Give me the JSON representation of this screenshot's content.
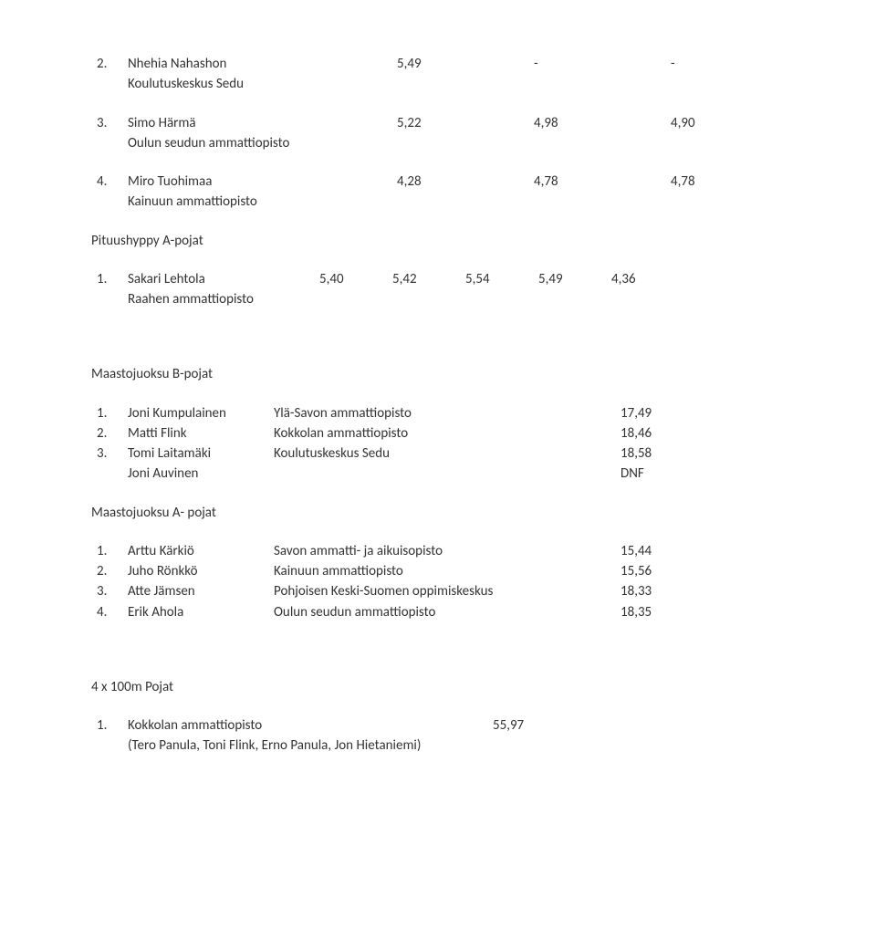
{
  "entry2": {
    "num": "2.",
    "name": "Nhehia Nahashon",
    "school": "Koulutuskeskus Sedu",
    "v1": "5,49",
    "v2": "-",
    "v3": "-"
  },
  "entry3": {
    "num": "3.",
    "name": "Simo Härmä",
    "school": "Oulun seudun ammattiopisto",
    "v1": "5,22",
    "v2": "4,98",
    "v3": "4,90"
  },
  "entry4": {
    "num": "4.",
    "name": "Miro Tuohimaa",
    "school": "Kainuun ammattiopisto",
    "v1": "4,28",
    "v2": "4,78",
    "v3": "4,78"
  },
  "section_pituus": "Pituushyppy A-pojat",
  "pituus1": {
    "num": "1.",
    "name": "Sakari Lehtola",
    "school": "Raahen ammattiopisto",
    "v1": "5,40",
    "v2": "5,42",
    "v3": "5,54",
    "v4": "5,49",
    "v5": "4,36"
  },
  "section_maastoB": "Maastojuoksu B-pojat",
  "mb1": {
    "num": "1.",
    "name": "Joni Kumpulainen",
    "school": "Ylä-Savon ammattiopisto",
    "val": "17,49"
  },
  "mb2": {
    "num": "2.",
    "name": "Matti Flink",
    "school": "Kokkolan ammattiopisto",
    "val": "18,46"
  },
  "mb3": {
    "num": "3.",
    "name": "Tomi Laitamäki",
    "school": "Koulutuskeskus Sedu",
    "val": "18,58"
  },
  "mb4": {
    "num": "",
    "name": "Joni Auvinen",
    "school": "",
    "val": "DNF"
  },
  "section_maastoA": "Maastojuoksu A- pojat",
  "ma1": {
    "num": "1.",
    "name": "Arttu Kärkiö",
    "school": "Savon ammatti- ja aikuisopisto",
    "val": "15,44"
  },
  "ma2": {
    "num": "2.",
    "name": "Juho Rönkkö",
    "school": "Kainuun ammattiopisto",
    "val": "15,56"
  },
  "ma3": {
    "num": "3.",
    "name": "Atte Jämsen",
    "school": "Pohjoisen Keski-Suomen oppimiskeskus",
    "val": "18,33"
  },
  "ma4": {
    "num": "4.",
    "name": "Erik Ahola",
    "school": "Oulun seudun ammattiopisto",
    "val": "18,35"
  },
  "section_relay": "4 x 100m Pojat",
  "relay1": {
    "num": "1.",
    "school": "Kokkolan ammattiopisto",
    "val": "55,97",
    "members": "(Tero Panula, Toni Flink, Erno Panula, Jon Hietaniemi)"
  }
}
